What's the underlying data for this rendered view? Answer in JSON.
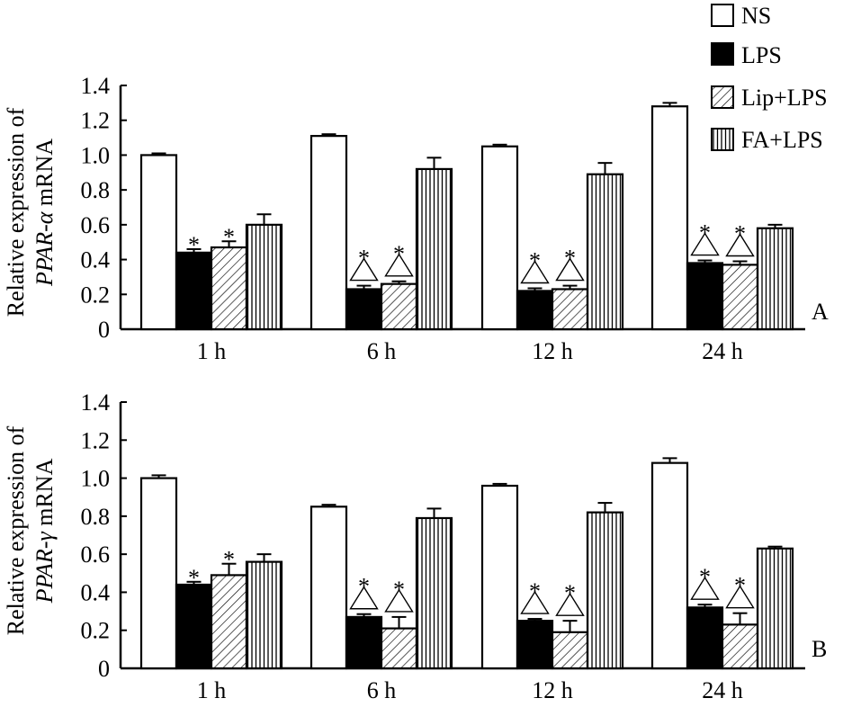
{
  "colors": {
    "ink": "#000000",
    "paper": "#ffffff"
  },
  "legend": [
    {
      "label": "NS",
      "pattern": "open"
    },
    {
      "label": "LPS",
      "pattern": "solid"
    },
    {
      "label": "Lip+LPS",
      "pattern": "diagonal"
    },
    {
      "label": "FA+LPS",
      "pattern": "vertical"
    }
  ],
  "chart_data": [
    {
      "type": "bar",
      "panel_label": "A",
      "ylabel_line1": "Relative expression of",
      "ylabel_gene": "PPAR-α",
      "ylabel_suffix": " mRNA",
      "ylim": [
        0,
        1.4
      ],
      "yticks": [
        "0",
        "0.2",
        "0.4",
        "0.6",
        "0.8",
        "1.0",
        "1.2",
        "1.4"
      ],
      "categories": [
        "1 h",
        "6 h",
        "12 h",
        "24 h"
      ],
      "series": [
        {
          "name": "NS",
          "values": [
            1.0,
            1.11,
            1.05,
            1.28
          ],
          "errors": [
            0.01,
            0.01,
            0.01,
            0.02
          ],
          "star": [
            false,
            false,
            false,
            false
          ],
          "triangle": [
            false,
            false,
            false,
            false
          ]
        },
        {
          "name": "LPS",
          "values": [
            0.44,
            0.23,
            0.22,
            0.38
          ],
          "errors": [
            0.02,
            0.02,
            0.015,
            0.015
          ],
          "star": [
            true,
            true,
            true,
            true
          ],
          "triangle": [
            false,
            true,
            true,
            true
          ]
        },
        {
          "name": "Lip+LPS",
          "values": [
            0.47,
            0.26,
            0.23,
            0.37
          ],
          "errors": [
            0.035,
            0.015,
            0.02,
            0.02
          ],
          "star": [
            true,
            true,
            true,
            true
          ],
          "triangle": [
            false,
            true,
            true,
            true
          ]
        },
        {
          "name": "FA+LPS",
          "values": [
            0.6,
            0.92,
            0.89,
            0.58
          ],
          "errors": [
            0.06,
            0.065,
            0.065,
            0.02
          ],
          "star": [
            false,
            false,
            false,
            false
          ],
          "triangle": [
            false,
            false,
            false,
            false
          ]
        }
      ],
      "star_symbol": "*"
    },
    {
      "type": "bar",
      "panel_label": "B",
      "ylabel_line1": "Relative expression of",
      "ylabel_gene": "PPAR-γ",
      "ylabel_suffix": " mRNA",
      "ylim": [
        0,
        1.4
      ],
      "yticks": [
        "0",
        "0.2",
        "0.4",
        "0.6",
        "0.8",
        "1.0",
        "1.2",
        "1.4"
      ],
      "categories": [
        "1 h",
        "6 h",
        "12 h",
        "24 h"
      ],
      "series": [
        {
          "name": "NS",
          "values": [
            1.0,
            0.85,
            0.96,
            1.08
          ],
          "errors": [
            0.015,
            0.01,
            0.01,
            0.025
          ],
          "star": [
            false,
            false,
            false,
            false
          ],
          "triangle": [
            false,
            false,
            false,
            false
          ]
        },
        {
          "name": "LPS",
          "values": [
            0.44,
            0.27,
            0.25,
            0.32
          ],
          "errors": [
            0.015,
            0.015,
            0.01,
            0.015
          ],
          "star": [
            true,
            true,
            true,
            true
          ],
          "triangle": [
            false,
            true,
            true,
            true
          ]
        },
        {
          "name": "Lip+LPS",
          "values": [
            0.49,
            0.21,
            0.19,
            0.23
          ],
          "errors": [
            0.06,
            0.06,
            0.06,
            0.06
          ],
          "star": [
            true,
            true,
            true,
            true
          ],
          "triangle": [
            false,
            true,
            true,
            true
          ]
        },
        {
          "name": "FA+LPS",
          "values": [
            0.56,
            0.79,
            0.82,
            0.63
          ],
          "errors": [
            0.04,
            0.05,
            0.05,
            0.01
          ],
          "star": [
            false,
            false,
            false,
            false
          ],
          "triangle": [
            false,
            false,
            false,
            false
          ]
        }
      ],
      "star_symbol": "*"
    }
  ]
}
